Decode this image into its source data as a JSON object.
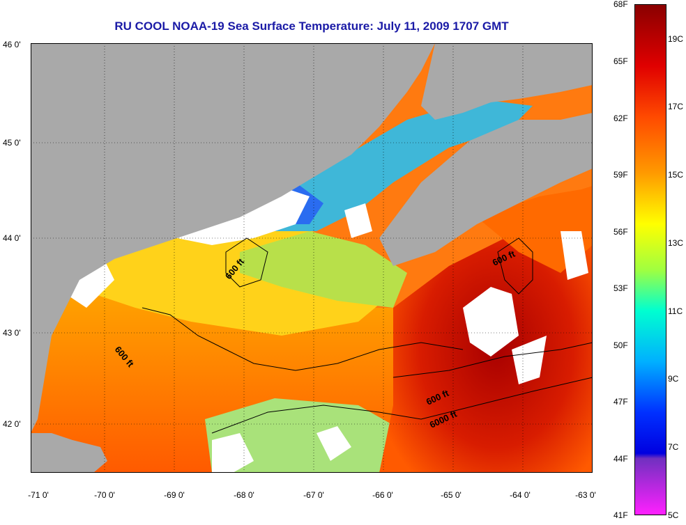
{
  "title": "RU COOL  NOAA-19  Sea Surface Temperature:  July 11, 2009 1707 GMT",
  "x_ticks": [
    "-71 0'",
    "-70 0'",
    "-69 0'",
    "-68 0'",
    "-67 0'",
    "-66 0'",
    "-65 0'",
    "-64 0'",
    "-63 0'"
  ],
  "y_ticks": [
    "46 0'",
    "45 0'",
    "44 0'",
    "43 0'",
    "42 0'"
  ],
  "colorbar": {
    "fahrenheit": [
      "68F",
      "65F",
      "62F",
      "59F",
      "56F",
      "53F",
      "50F",
      "47F",
      "44F",
      "41F"
    ],
    "celsius": [
      "19C",
      "17C",
      "15C",
      "13C",
      "11C",
      "9C",
      "7C",
      "5C"
    ]
  },
  "contours": [
    {
      "label": "600 ft"
    },
    {
      "label": "600 ft"
    },
    {
      "label": "600 ft"
    },
    {
      "label": "600 ft"
    },
    {
      "label": "6000 ft"
    }
  ],
  "colors": {
    "land": "#a9a9a9",
    "cloud": "#ffffff",
    "title": "#1a1aa6"
  }
}
